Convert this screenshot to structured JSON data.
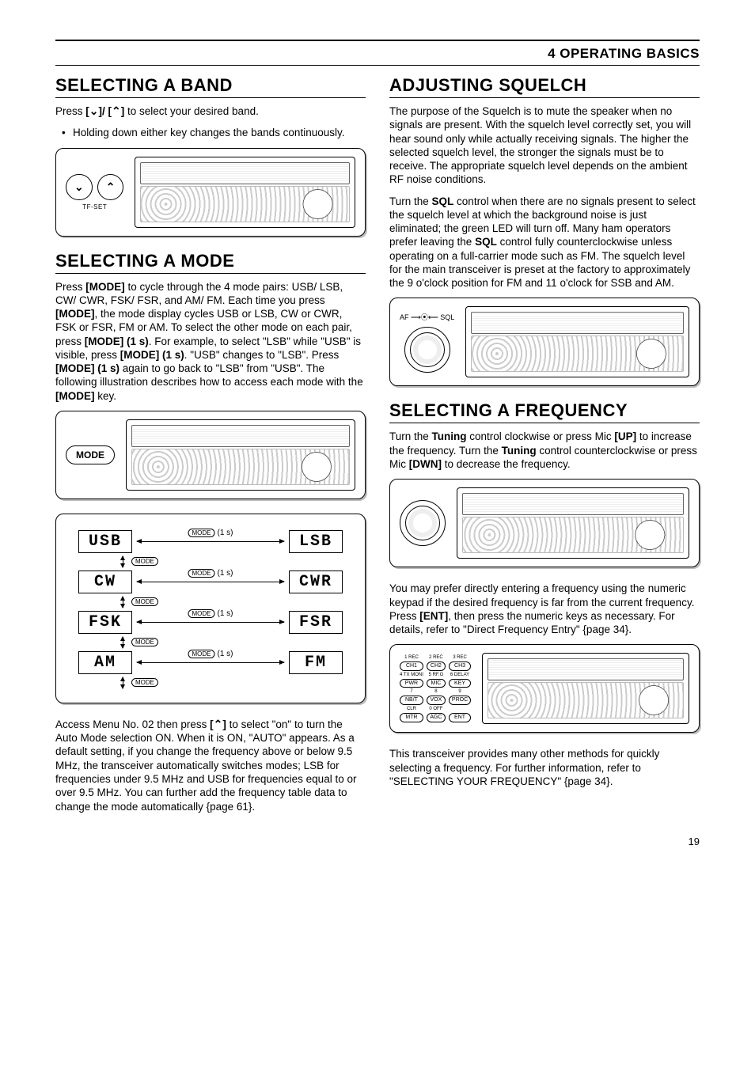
{
  "header": {
    "section_label": "4  OPERATING BASICS"
  },
  "page_number": "19",
  "colors": {
    "text": "#000000",
    "background": "#ffffff",
    "rule": "#000000",
    "figure_shadow": "#bbbbbb"
  },
  "typography": {
    "heading_font": "Arial Narrow",
    "heading_size_pt": 16,
    "body_font": "Arial",
    "body_size_pt": 10,
    "seg_font": "Courier New"
  },
  "left": {
    "s1": {
      "title": "SELECTING A BAND",
      "p1_a": "Press ",
      "p1_b": "[",
      "p1_c": "]/ ",
      "p1_d": "[",
      "p1_e": "]",
      "p1_f": " to select your desired band.",
      "bullet1": "Holding down either key changes the bands continuously.",
      "fig": {
        "tfset": "TF-SET",
        "down": "⌄",
        "up": "⌃"
      }
    },
    "s2": {
      "title": "SELECTING A MODE",
      "p1_a": "Press ",
      "p1_b": "[MODE]",
      "p1_c": " to cycle through the 4 mode pairs: USB/ LSB, CW/ CWR, FSK/ FSR, and AM/ FM.  Each time you press ",
      "p1_d": "[MODE]",
      "p1_e": ", the mode display cycles USB or LSB, CW or CWR, FSK or FSR, FM or AM. To select the other mode on each pair, press ",
      "p1_f": "[MODE] (1 s)",
      "p1_g": ".  For example, to select \"LSB\" while \"USB\" is visible, press ",
      "p1_h": "[MODE] (1 s)",
      "p1_i": ".  \"USB\" changes to \"LSB\".  Press  ",
      "p1_j": "[MODE] (1 s)",
      "p1_k": " again to go back to \"LSB\" from \"USB\".  The following illustration describes how to access each mode with the ",
      "p1_l": "[MODE]",
      "p1_m": " key.",
      "fig_btn": "MODE",
      "diagram": {
        "rows": [
          {
            "l": "USB",
            "r": "LSB"
          },
          {
            "l": "CW",
            "r": "CWR"
          },
          {
            "l": "FSK",
            "r": "FSR"
          },
          {
            "l": "AM",
            "r": "FM"
          }
        ],
        "h_label_btn": "MODE",
        "h_label_txt": "(1 s)",
        "v_label_btn": "MODE"
      },
      "p2_a": "Access Menu No. 02 then press ",
      "p2_b": "[",
      "p2_c": "]",
      "p2_d": " to select \"on\" to turn the Auto Mode selection ON.  When it is ON, \"AUTO\" appears.  As a default setting, if you change the frequency above or below 9.5 MHz, the transceiver automatically switches modes; LSB for frequencies under 9.5 MHz and USB for frequencies equal to or over 9.5 MHz. You can further add the frequency table data to change the mode automatically {page 61}."
    }
  },
  "right": {
    "s1": {
      "title": "ADJUSTING SQUELCH",
      "p1": "The purpose of the Squelch is to mute the speaker when no signals are present.  With the squelch level correctly set, you will hear sound only while actually receiving signals.  The higher the selected squelch level, the stronger the signals must be to receive.  The appropriate squelch level depends on the ambient RF noise conditions.",
      "p2_a": "Turn the ",
      "p2_b": "SQL",
      "p2_c": " control when there are no signals present to select the squelch level at which the background noise is just eliminated; the green LED will turn off.  Many ham operators prefer leaving the ",
      "p2_d": "SQL",
      "p2_e": " control fully counterclockwise unless operating on a full-carrier mode such as FM.  The squelch level for the main transceiver is preset at the factory to approximately the 9 o'clock position for FM and 11 o'clock for SSB and AM.",
      "fig_label": "AF ⟶⦿⟵ SQL"
    },
    "s2": {
      "title": "SELECTING A FREQUENCY",
      "p1_a": "Turn the ",
      "p1_b": "Tuning",
      "p1_c": " control clockwise or press Mic ",
      "p1_d": "[UP]",
      "p1_e": " to increase the frequency.  Turn the ",
      "p1_f": "Tuning",
      "p1_g": " control counterclockwise or press Mic ",
      "p1_h": "[DWN]",
      "p1_i": " to decrease the frequency.",
      "p2_a": "You may prefer directly entering a frequency using the numeric keypad if the desired frequency is far from the current frequency.  Press ",
      "p2_b": "[ENT]",
      "p2_c": ", then press the numeric keys as necessary.  For details, refer to \"Direct Frequency Entry\" {page 34}.",
      "keypad": {
        "caps": [
          "1 REC",
          "2 REC",
          "3 REC",
          "4 TX MONI",
          "5 RF.G",
          "6  DELAY",
          "7",
          "8",
          "9",
          "CLR",
          "0 OFF",
          ""
        ],
        "btns": [
          "CH1",
          "CH2",
          "CH3",
          "PWR",
          "MIC",
          "KEY",
          "NB/T",
          "VOX",
          "PROC",
          "MTR",
          "AGC",
          "ENT"
        ]
      },
      "p3": "This transceiver provides many other methods for quickly selecting a frequency.  For further information, refer to \"SELECTING YOUR FREQUENCY\" {page 34}."
    }
  }
}
